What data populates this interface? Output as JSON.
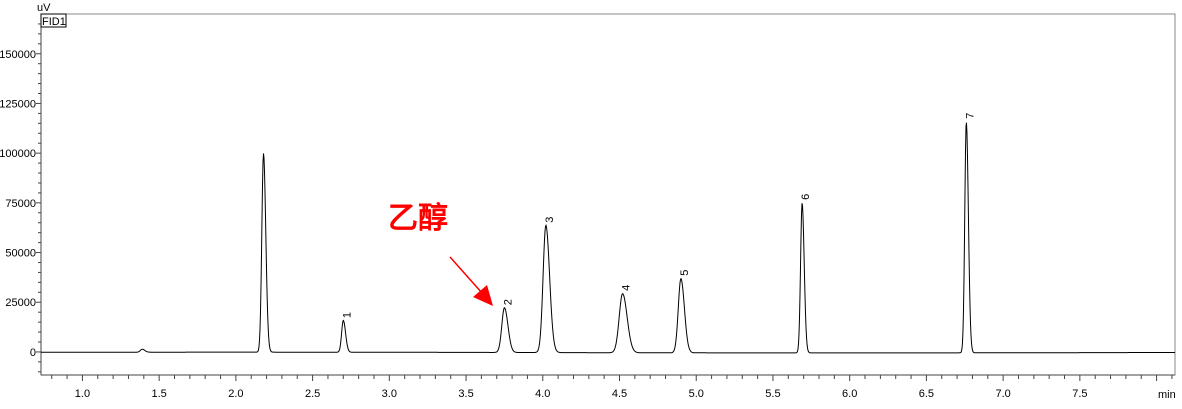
{
  "chart_data": {
    "type": "line",
    "title": "",
    "channel_label": "FID1",
    "ylabel": "uV",
    "xlabel": "min",
    "xlim": [
      0.73,
      8.12
    ],
    "ylim": [
      -11600,
      170000
    ],
    "x_ticks": [
      "1.0",
      "1.5",
      "2.0",
      "2.5",
      "3.0",
      "3.5",
      "4.0",
      "4.5",
      "5.0",
      "5.5",
      "6.0",
      "6.5",
      "7.0",
      "7.5"
    ],
    "x_tick_values": [
      1.0,
      1.5,
      2.0,
      2.5,
      3.0,
      3.5,
      4.0,
      4.5,
      5.0,
      5.5,
      6.0,
      6.5,
      7.0,
      7.5
    ],
    "y_ticks": [
      "0",
      "25000",
      "50000",
      "75000",
      "100000",
      "125000",
      "150000"
    ],
    "y_tick_values": [
      0,
      25000,
      50000,
      75000,
      100000,
      125000,
      150000
    ],
    "grid": false,
    "line_color": "#000000",
    "peaks": [
      {
        "label": "",
        "rt": 1.39,
        "height": 1500,
        "width": 0.012
      },
      {
        "label": "",
        "rt": 2.18,
        "height": 100000,
        "width": 0.011
      },
      {
        "label": "1",
        "rt": 2.7,
        "height": 16000,
        "width": 0.011
      },
      {
        "label": "2",
        "rt": 3.75,
        "height": 22500,
        "width": 0.017
      },
      {
        "label": "3",
        "rt": 4.02,
        "height": 64000,
        "width": 0.018
      },
      {
        "label": "4",
        "rt": 4.52,
        "height": 29700,
        "width": 0.022
      },
      {
        "label": "5",
        "rt": 4.9,
        "height": 37300,
        "width": 0.017
      },
      {
        "label": "6",
        "rt": 5.69,
        "height": 75500,
        "width": 0.01
      },
      {
        "label": "7",
        "rt": 6.76,
        "height": 116300,
        "width": 0.01
      }
    ],
    "annotation": {
      "text": "乙醇",
      "target_peak": "2",
      "color": "#ff0000"
    }
  }
}
